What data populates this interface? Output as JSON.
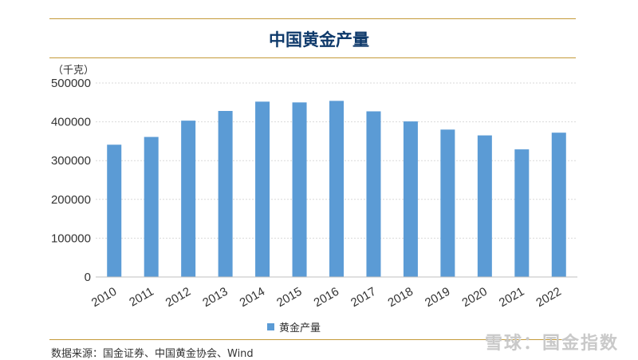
{
  "colors": {
    "bar": "#5b9bd5",
    "title": "#0f3a6b",
    "rule": "#c49a3a",
    "grid": "#d9d9d9"
  },
  "chart_data": {
    "type": "bar",
    "title": "中国黄金产量",
    "unit_label": "（千克）",
    "categories": [
      "2010",
      "2011",
      "2012",
      "2013",
      "2014",
      "2015",
      "2016",
      "2017",
      "2018",
      "2019",
      "2020",
      "2021",
      "2022"
    ],
    "series": [
      {
        "name": "黄金产量",
        "values": [
          341000,
          361000,
          403000,
          428000,
          452000,
          450000,
          454000,
          427000,
          401000,
          380000,
          365000,
          329000,
          372000
        ]
      }
    ],
    "yticks": [
      "0",
      "100000",
      "200000",
      "300000",
      "400000",
      "500000"
    ],
    "ylim": [
      0,
      500000
    ],
    "grid": true,
    "legend": "bottom"
  },
  "footer": {
    "source": "数据来源：国金证券、中国黄金协会、Wind",
    "watermark": "雪球：国金指数"
  }
}
